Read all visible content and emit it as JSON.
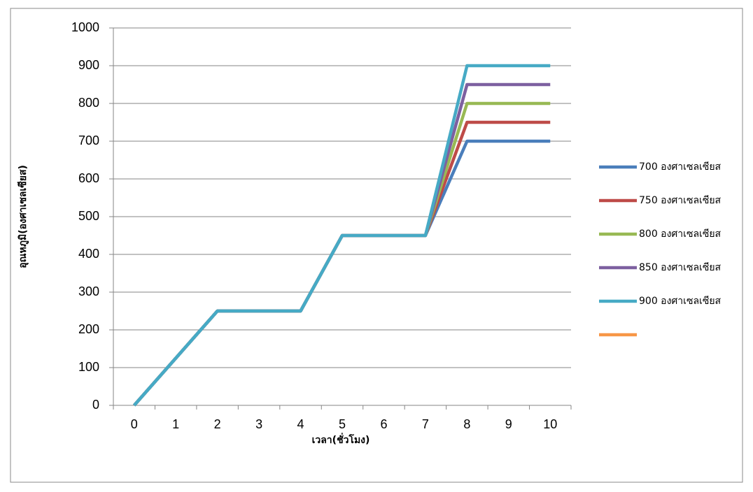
{
  "chart_data": {
    "type": "line",
    "xlabel": "เวลา(ชั่วโมง)",
    "ylabel": "อุณหภูมิ(องศาเซลเซียส)",
    "categories": [
      "0",
      "1",
      "2",
      "3",
      "4",
      "5",
      "6",
      "7",
      "8",
      "9",
      "10"
    ],
    "ylim": [
      0,
      1000
    ],
    "yticks": [
      0,
      100,
      200,
      300,
      400,
      500,
      600,
      700,
      800,
      900,
      1000
    ],
    "grid": true,
    "legend": "right",
    "series": [
      {
        "name": "700 องศาเซลเซียส",
        "color": "#4a7ebb",
        "values": [
          0,
          125,
          250,
          250,
          250,
          450,
          450,
          450,
          700,
          700,
          700
        ]
      },
      {
        "name": "750 องศาเซลเซียส",
        "color": "#be4b48",
        "values": [
          0,
          125,
          250,
          250,
          250,
          450,
          450,
          450,
          750,
          750,
          750
        ]
      },
      {
        "name": "800 องศาเซลเซียส",
        "color": "#98b954",
        "values": [
          0,
          125,
          250,
          250,
          250,
          450,
          450,
          450,
          800,
          800,
          800
        ]
      },
      {
        "name": "850 องศาเซลเซียส",
        "color": "#7d60a0",
        "values": [
          0,
          125,
          250,
          250,
          250,
          450,
          450,
          450,
          850,
          850,
          850
        ]
      },
      {
        "name": "900 องศาเซลเซียส",
        "color": "#46aac5",
        "values": [
          0,
          125,
          250,
          250,
          250,
          450,
          450,
          450,
          900,
          900,
          900
        ]
      },
      {
        "color": "#f79646",
        "values": [
          null,
          null,
          null,
          null,
          null,
          null,
          null,
          null,
          null,
          null,
          null
        ]
      }
    ]
  }
}
